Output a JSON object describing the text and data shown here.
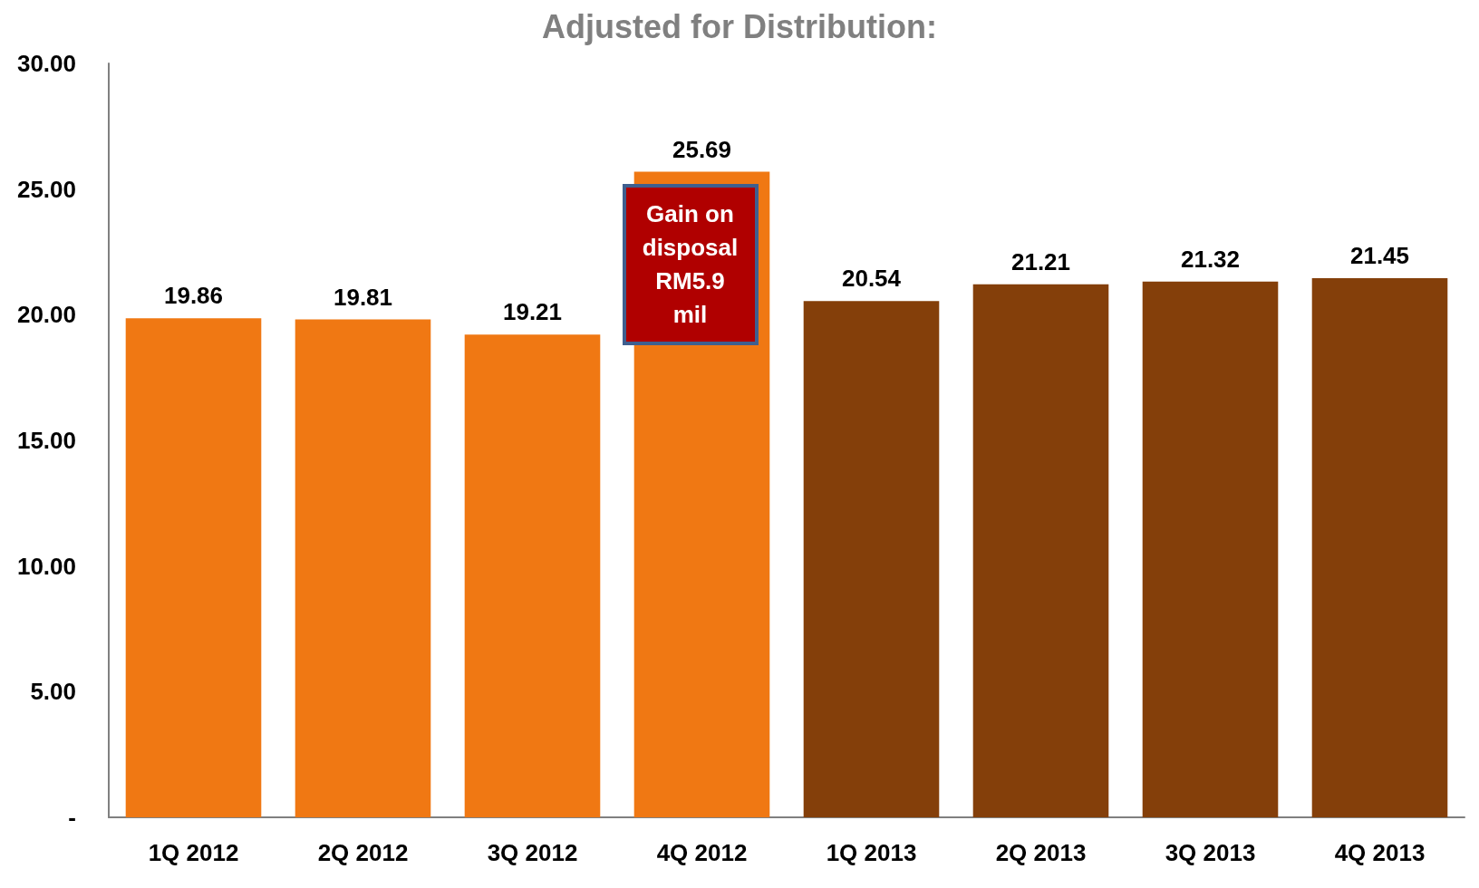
{
  "chart_data": {
    "type": "bar",
    "title": "Adjusted for Distribution:",
    "categories": [
      "1Q 2012",
      "2Q 2012",
      "3Q 2012",
      "4Q 2012",
      "1Q 2013",
      "2Q 2013",
      "3Q 2013",
      "4Q 2013"
    ],
    "values": [
      19.86,
      19.81,
      19.21,
      25.69,
      20.54,
      21.21,
      21.32,
      21.45
    ],
    "colors": [
      "#f07813",
      "#f07813",
      "#f07813",
      "#f07813",
      "#843f0a",
      "#843f0a",
      "#843f0a",
      "#843f0a"
    ],
    "data_labels": true,
    "ylim": [
      0,
      30
    ],
    "yticks": [
      {
        "value": 0,
        "label": "-"
      },
      {
        "value": 5,
        "label": "5.00"
      },
      {
        "value": 10,
        "label": "10.00"
      },
      {
        "value": 15,
        "label": "15.00"
      },
      {
        "value": 20,
        "label": "20.00"
      },
      {
        "value": 25,
        "label": "25.00"
      },
      {
        "value": 30,
        "label": "30.00"
      }
    ],
    "grid": false,
    "annotations": [
      "Gain on disposal RM5.9 mil"
    ]
  }
}
